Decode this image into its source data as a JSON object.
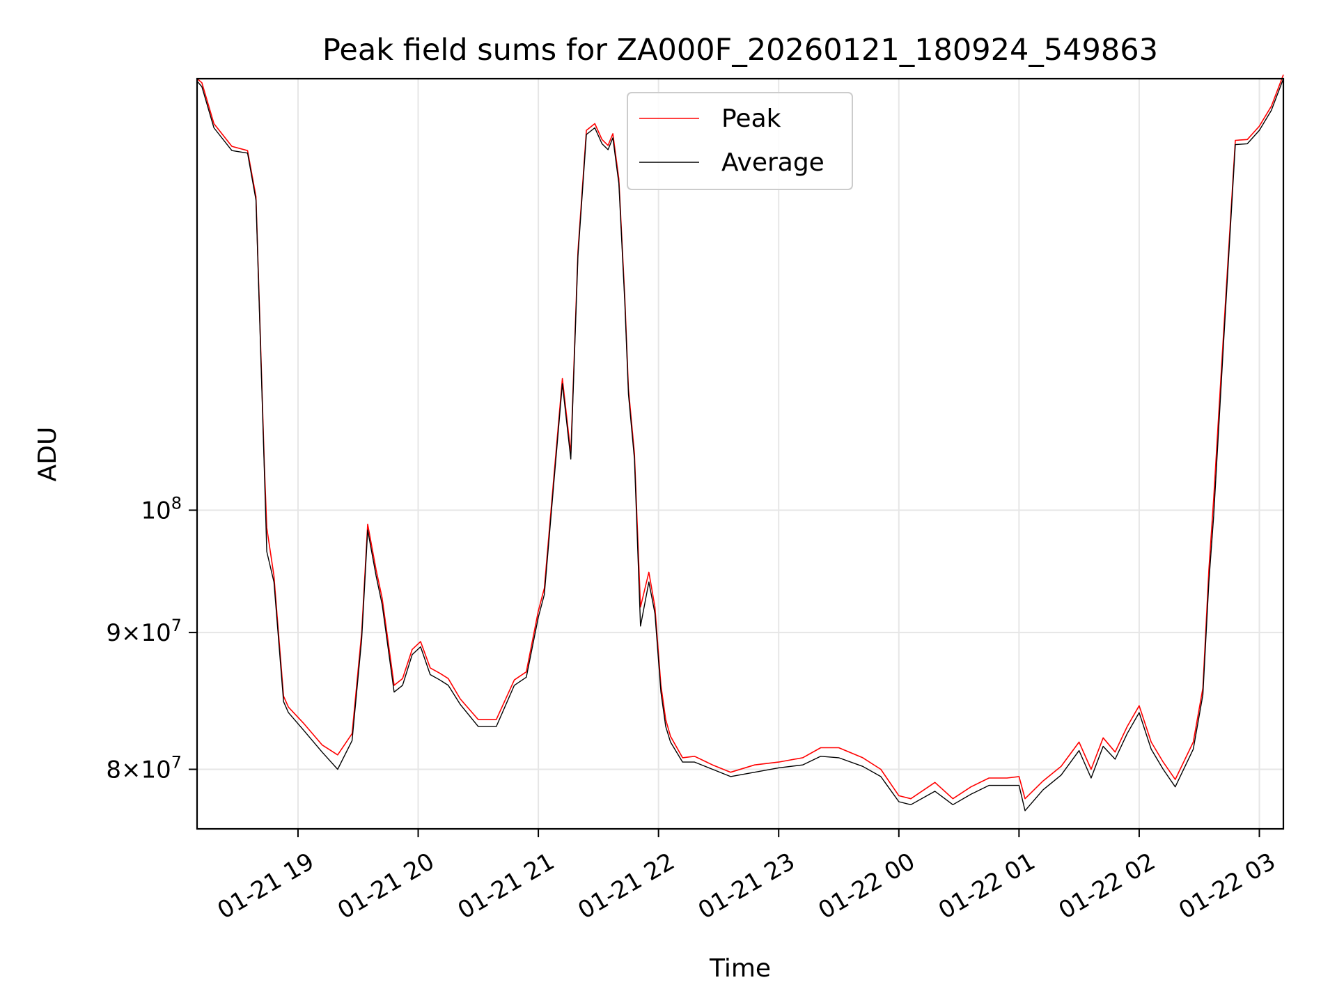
{
  "chart_data": {
    "type": "line",
    "title": "Peak field sums for ZA000F_20260121_180924_549863",
    "xlabel": "Time",
    "ylabel": "ADU",
    "yscale": "log",
    "xlim_hours": [
      18.16,
      27.2
    ],
    "ylim": [
      76000000,
      145000000
    ],
    "grid": true,
    "legend_location": "upper center",
    "x_ticks": [
      {
        "hour": 19,
        "label": "01-21 19"
      },
      {
        "hour": 20,
        "label": "01-21 20"
      },
      {
        "hour": 21,
        "label": "01-21 21"
      },
      {
        "hour": 22,
        "label": "01-21 22"
      },
      {
        "hour": 23,
        "label": "01-21 23"
      },
      {
        "hour": 24,
        "label": "01-22 00"
      },
      {
        "hour": 25,
        "label": "01-22 01"
      },
      {
        "hour": 26,
        "label": "01-22 02"
      },
      {
        "hour": 27,
        "label": "01-22 03"
      }
    ],
    "y_ticks": [
      {
        "value": 80000000,
        "mantissa": "8",
        "exp": "7",
        "form": "mult"
      },
      {
        "value": 90000000,
        "mantissa": "9",
        "exp": "7",
        "form": "mult"
      },
      {
        "value": 100000000,
        "mantissa": "10",
        "exp": "8",
        "form": "pow"
      }
    ],
    "series": [
      {
        "name": "Peak",
        "color": "#ff0000"
      },
      {
        "name": "Average",
        "color": "#000000"
      }
    ],
    "x_hours": [
      18.16,
      18.2,
      18.3,
      18.45,
      18.58,
      18.65,
      18.72,
      18.74,
      18.8,
      18.88,
      18.92,
      19.05,
      19.2,
      19.33,
      19.45,
      19.53,
      19.58,
      19.65,
      19.7,
      19.8,
      19.87,
      19.95,
      20.02,
      20.1,
      20.18,
      20.25,
      20.35,
      20.5,
      20.65,
      20.8,
      20.9,
      21.0,
      21.05,
      21.13,
      21.2,
      21.27,
      21.33,
      21.4,
      21.47,
      21.53,
      21.58,
      21.62,
      21.67,
      21.72,
      21.75,
      21.8,
      21.85,
      21.92,
      21.97,
      22.02,
      22.06,
      22.1,
      22.2,
      22.3,
      22.45,
      22.6,
      22.8,
      23.0,
      23.2,
      23.35,
      23.5,
      23.7,
      23.85,
      24.0,
      24.1,
      24.3,
      24.45,
      24.6,
      24.75,
      24.9,
      25.0,
      25.05,
      25.2,
      25.35,
      25.5,
      25.6,
      25.7,
      25.8,
      25.9,
      26.0,
      26.1,
      26.2,
      26.3,
      26.45,
      26.53,
      26.58,
      26.62,
      26.7,
      26.8,
      26.9,
      27.0,
      27.1,
      27.2
    ],
    "peak": [
      145000000,
      144500000,
      139500000,
      136800000,
      136300000,
      131000000,
      104000000,
      98500000,
      94500000,
      85200000,
      84400000,
      83200000,
      81700000,
      81000000,
      82500000,
      90000000,
      98800000,
      95000000,
      92700000,
      86000000,
      86500000,
      88700000,
      89300000,
      87300000,
      86900000,
      86500000,
      85000000,
      83500000,
      83500000,
      86400000,
      87000000,
      91700000,
      93500000,
      103000000,
      112000000,
      105000000,
      125000000,
      138700000,
      139500000,
      137600000,
      136900000,
      138300000,
      133000000,
      120000000,
      111000000,
      105000000,
      92000000,
      94800000,
      92000000,
      86000000,
      83500000,
      82300000,
      80800000,
      80900000,
      80300000,
      79800000,
      80300000,
      80500000,
      80800000,
      81500000,
      81500000,
      80800000,
      80000000,
      78200000,
      78000000,
      79100000,
      78000000,
      78800000,
      79400000,
      79400000,
      79500000,
      78000000,
      79200000,
      80200000,
      81900000,
      80000000,
      82200000,
      81200000,
      83000000,
      84500000,
      81900000,
      80500000,
      79300000,
      81900000,
      85800000,
      95000000,
      101000000,
      116000000,
      137500000,
      137600000,
      139200000,
      141600000,
      145500000
    ],
    "average": [
      144700000,
      144000000,
      139000000,
      136300000,
      136000000,
      130600000,
      103500000,
      96500000,
      94000000,
      84800000,
      84000000,
      82700000,
      81200000,
      80000000,
      82000000,
      89500000,
      98300000,
      94500000,
      92200000,
      85500000,
      86000000,
      88300000,
      88900000,
      86800000,
      86400000,
      86000000,
      84600000,
      83000000,
      83000000,
      86000000,
      86600000,
      91200000,
      93000000,
      102500000,
      111500000,
      104500000,
      124500000,
      138200000,
      139000000,
      137100000,
      136400000,
      137800000,
      132500000,
      119500000,
      110500000,
      104500000,
      90500000,
      94000000,
      91500000,
      85500000,
      83000000,
      81900000,
      80500000,
      80500000,
      80000000,
      79500000,
      79800000,
      80100000,
      80300000,
      80900000,
      80800000,
      80200000,
      79500000,
      77800000,
      77600000,
      78500000,
      77600000,
      78300000,
      78900000,
      78900000,
      78900000,
      77200000,
      78600000,
      79600000,
      81300000,
      79400000,
      81600000,
      80700000,
      82500000,
      84000000,
      81400000,
      80000000,
      78800000,
      81400000,
      85300000,
      94000000,
      99500000,
      115000000,
      137000000,
      137100000,
      138700000,
      141100000,
      145000000
    ]
  }
}
